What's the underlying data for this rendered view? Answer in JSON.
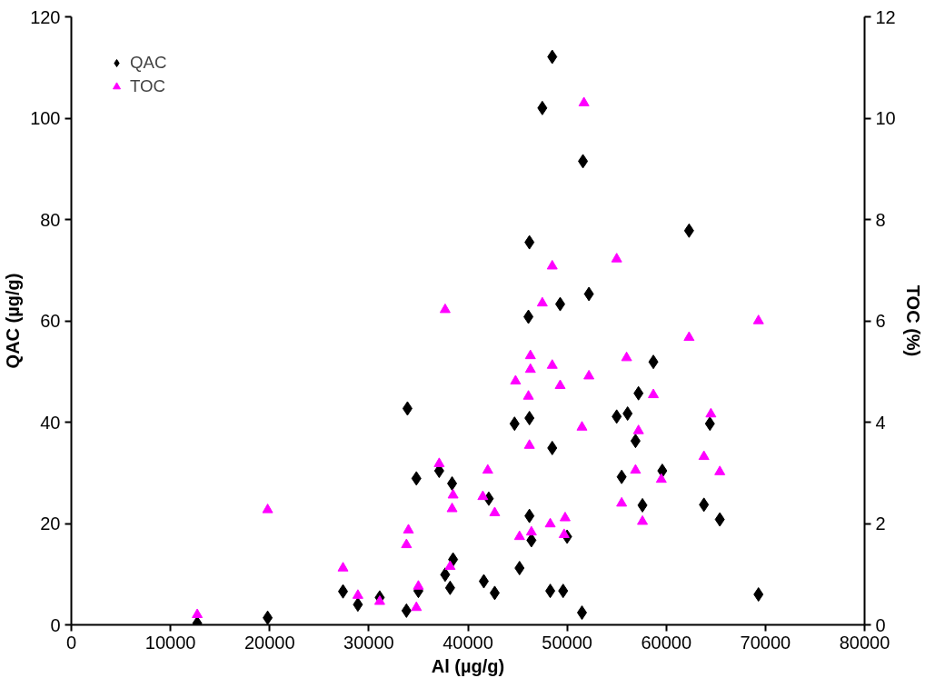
{
  "chart_data": {
    "type": "scatter",
    "xlabel": "Al (µg/g)",
    "ylabel": "QAC (µg/g)",
    "y2label": "TOC (%)",
    "xlim": [
      0,
      80000
    ],
    "xticks": [
      0,
      10000,
      20000,
      30000,
      40000,
      50000,
      60000,
      70000,
      80000
    ],
    "ylim": [
      0,
      120
    ],
    "yticks": [
      0,
      20,
      40,
      60,
      80,
      100,
      120
    ],
    "y2lim": [
      0,
      12
    ],
    "y2ticks": [
      0,
      2,
      4,
      6,
      8,
      10,
      12
    ],
    "grid": false,
    "legend": "top left",
    "series": [
      {
        "name": "QAC",
        "color": "#000000",
        "marker": "diamond",
        "x": [
          12700,
          19800,
          27400,
          28900,
          31100,
          33800,
          33900,
          34800,
          35000,
          37100,
          37700,
          38200,
          38400,
          38500,
          41600,
          42100,
          42700,
          44700,
          45200,
          46100,
          46200,
          46200,
          46200,
          46400,
          47500,
          48300,
          48500,
          48500,
          49300,
          49600,
          50000,
          51500,
          51600,
          52200,
          55000,
          55500,
          56100,
          56900,
          57200,
          57600,
          58700,
          59600,
          62300,
          63800,
          64400,
          65400,
          69300
        ],
        "values": [
          0.3,
          1.4,
          6.6,
          4.0,
          5.4,
          2.8,
          42.7,
          28.9,
          6.7,
          30.4,
          9.9,
          7.3,
          27.9,
          12.9,
          8.6,
          24.9,
          6.3,
          39.7,
          11.2,
          60.8,
          75.5,
          40.8,
          21.5,
          16.7,
          102.0,
          6.7,
          112.1,
          34.9,
          63.3,
          6.7,
          17.4,
          2.4,
          91.5,
          65.3,
          41.1,
          29.2,
          41.7,
          36.3,
          45.7,
          23.6,
          51.9,
          30.4,
          77.8,
          23.7,
          39.7,
          20.8,
          6.0
        ]
      },
      {
        "name": "TOC",
        "color": "#ff00ff",
        "marker": "triangle",
        "axis": "y2",
        "x": [
          12700,
          19800,
          27400,
          28900,
          31100,
          33800,
          34000,
          34800,
          35000,
          37100,
          37700,
          38200,
          38400,
          38500,
          41500,
          42000,
          42700,
          44800,
          45200,
          46100,
          46200,
          46300,
          46300,
          46400,
          47500,
          48300,
          48500,
          48500,
          49300,
          49700,
          49800,
          51500,
          51700,
          52200,
          55000,
          55500,
          56000,
          56900,
          57200,
          57600,
          58700,
          59500,
          62300,
          63800,
          64500,
          65400,
          69300
        ],
        "values": [
          0.2,
          2.27,
          1.12,
          0.58,
          0.46,
          1.58,
          1.87,
          0.34,
          0.76,
          3.18,
          6.22,
          1.15,
          2.29,
          2.56,
          2.53,
          3.05,
          2.21,
          4.81,
          1.74,
          4.51,
          3.54,
          5.31,
          5.04,
          1.83,
          6.35,
          1.99,
          7.08,
          5.12,
          4.72,
          1.78,
          2.11,
          3.9,
          10.3,
          4.91,
          7.22,
          2.4,
          5.27,
          3.05,
          3.83,
          2.04,
          4.54,
          2.87,
          5.67,
          3.32,
          4.16,
          3.02,
          6.0
        ]
      }
    ]
  }
}
